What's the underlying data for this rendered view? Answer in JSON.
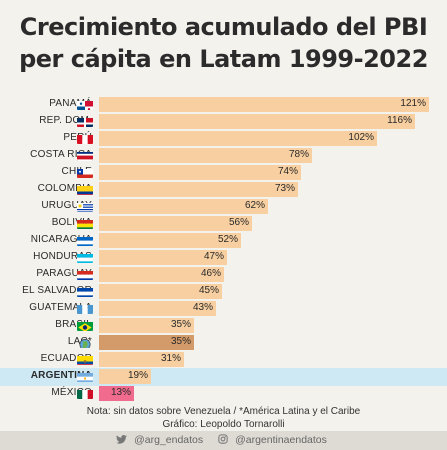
{
  "chart_data": {
    "type": "bar",
    "orientation": "horizontal",
    "title": "Crecimiento acumulado del PBI per cápita en Latam 1999-2022",
    "title_line1": "Crecimiento acumulado del PBI",
    "title_line2": "per cápita en Latam 1999-2022",
    "categories": [
      "PANAMÁ",
      "REP. DOM.",
      "PERÚ",
      "COSTA RICA",
      "CHILE",
      "COLOMBIA",
      "URUGUAY",
      "BOLIVIA",
      "NICARAGUA",
      "HONDURAS",
      "PARAGUAY",
      "EL SALVADOR",
      "GUATEMALA",
      "BRASIL",
      "LAC*",
      "ECUADOR",
      "ARGENTINA",
      "MÉXICO"
    ],
    "values": [
      121,
      116,
      102,
      78,
      74,
      73,
      62,
      56,
      52,
      47,
      46,
      45,
      43,
      35,
      35,
      31,
      19,
      13
    ],
    "value_labels": [
      "121%",
      "116%",
      "102%",
      "78%",
      "74%",
      "73%",
      "62%",
      "56%",
      "52%",
      "47%",
      "46%",
      "45%",
      "43%",
      "35%",
      "35%",
      "31%",
      "19%",
      "13%"
    ],
    "xlim": [
      0,
      121
    ],
    "highlight": "ARGENTINA",
    "colors": {
      "default": "#f7cfa0",
      "lac": "#d49b6a",
      "mexico": "#f06b8d",
      "highlight_band": "#cfe9f4"
    },
    "flags": [
      "panama-flag",
      "dominican-republic-flag",
      "peru-flag",
      "costa-rica-flag",
      "chile-flag",
      "colombia-flag",
      "uruguay-flag",
      "bolivia-flag",
      "nicaragua-flag",
      "honduras-flag",
      "paraguay-flag",
      "el-salvador-flag",
      "guatemala-flag",
      "brazil-flag",
      "globe-icon",
      "ecuador-flag",
      "argentina-flag",
      "mexico-flag"
    ]
  },
  "note_line1": "Nota: sin datos sobre Venezuela / *América Latina y el Caribe",
  "note_line2": "Gráfico: Leopoldo Tornarolli",
  "footer": {
    "twitter_handle": "@arg_endatos",
    "instagram_handle": "@argentinaendatos",
    "twitter_icon": "twitter-icon",
    "instagram_icon": "instagram-icon"
  }
}
